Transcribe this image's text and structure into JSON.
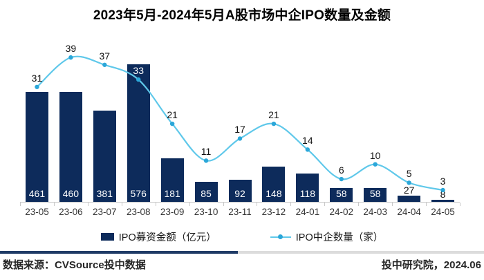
{
  "title": "2023年5月-2024年5月A股市场中企IPO数量及金额",
  "chart_data": {
    "type": "combo-bar-line",
    "title": "2023年5月-2024年5月A股市场中企IPO数量及金额",
    "categories": [
      "23-05",
      "23-06",
      "23-07",
      "23-08",
      "23-09",
      "23-10",
      "23-11",
      "23-12",
      "24-01",
      "24-02",
      "24-03",
      "24-04",
      "24-05"
    ],
    "series": [
      {
        "name": "IPO募资金额（亿元）",
        "type": "bar",
        "values": [
          461,
          460,
          381,
          576,
          181,
          85,
          92,
          148,
          118,
          58,
          58,
          27,
          8
        ]
      },
      {
        "name": "IPO中企数量（家）",
        "type": "line",
        "values": [
          31,
          39,
          37,
          33,
          21,
          11,
          17,
          21,
          14,
          6,
          10,
          5,
          3
        ]
      }
    ],
    "bar_axis_range": [
      0,
      600
    ],
    "line_axis_range": [
      0,
      40
    ],
    "grid": false,
    "value_labels": true,
    "legend_position": "bottom"
  },
  "footer": {
    "source": "数据来源：CVSource投中数据",
    "publisher": "投中研究院，2024.06"
  },
  "colors": {
    "bar": "#0d2b5b",
    "line": "#5fc8ea",
    "dot": "#2ba7d9",
    "bar_label_inside": "#ffffff",
    "value_label": "#111111",
    "axis": "#c9c9c9",
    "divider_left": "#1f3b66",
    "divider_right": "#dcdcdc"
  }
}
